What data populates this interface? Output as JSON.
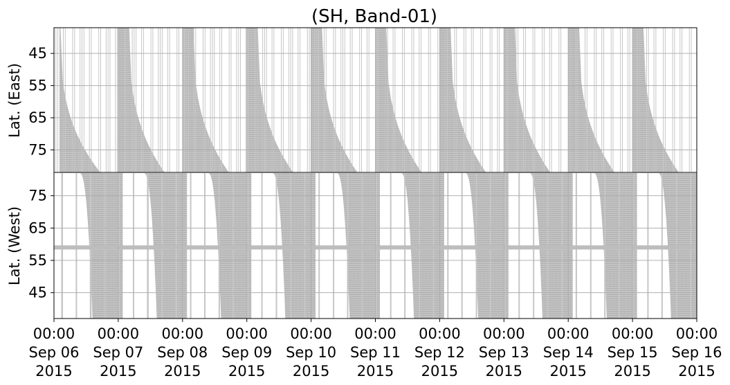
{
  "chart_data": {
    "type": "heatmap",
    "title": "(SH, Band-01)",
    "mark_color": "#b8b8b8",
    "grid": true,
    "x_ticks": [
      {
        "time": "00:00",
        "date": "Sep 06",
        "year": "2015"
      },
      {
        "time": "00:00",
        "date": "Sep 07",
        "year": "2015"
      },
      {
        "time": "00:00",
        "date": "Sep 08",
        "year": "2015"
      },
      {
        "time": "00:00",
        "date": "Sep 09",
        "year": "2015"
      },
      {
        "time": "00:00",
        "date": "Sep 10",
        "year": "2015"
      },
      {
        "time": "00:00",
        "date": "Sep 11",
        "year": "2015"
      },
      {
        "time": "00:00",
        "date": "Sep 12",
        "year": "2015"
      },
      {
        "time": "00:00",
        "date": "Sep 13",
        "year": "2015"
      },
      {
        "time": "00:00",
        "date": "Sep 14",
        "year": "2015"
      },
      {
        "time": "00:00",
        "date": "Sep 15",
        "year": "2015"
      },
      {
        "time": "00:00",
        "date": "Sep 16",
        "year": "2015"
      }
    ],
    "xlim": [
      "2015-09-06 00:00",
      "2015-09-16 00:00"
    ],
    "panels": [
      {
        "name": "east",
        "ylabel": "Lat. (East)",
        "yticks": [
          "45",
          "55",
          "65",
          "75"
        ],
        "ylim": [
          37,
          82
        ],
        "y_inverted": true,
        "daily_coverage": [
          {
            "x": "2015-09-06",
            "lat_full_until_day_fraction": 0.1,
            "lat_82_at_day_fraction": 0.72
          },
          {
            "x": "2015-09-07",
            "lat_full_until_day_fraction": 0.17,
            "lat_82_at_day_fraction": 0.72
          },
          {
            "x": "2015-09-08",
            "lat_full_until_day_fraction": 0.17,
            "lat_82_at_day_fraction": 0.72
          },
          {
            "x": "2015-09-09",
            "lat_full_until_day_fraction": 0.17,
            "lat_82_at_day_fraction": 0.72
          },
          {
            "x": "2015-09-10",
            "lat_full_until_day_fraction": 0.17,
            "lat_82_at_day_fraction": 0.72
          },
          {
            "x": "2015-09-11",
            "lat_full_until_day_fraction": 0.17,
            "lat_82_at_day_fraction": 0.72
          },
          {
            "x": "2015-09-12",
            "lat_full_until_day_fraction": 0.17,
            "lat_82_at_day_fraction": 0.72
          },
          {
            "x": "2015-09-13",
            "lat_full_until_day_fraction": 0.17,
            "lat_82_at_day_fraction": 0.72
          },
          {
            "x": "2015-09-14",
            "lat_full_until_day_fraction": 0.17,
            "lat_82_at_day_fraction": 0.72
          },
          {
            "x": "2015-09-15",
            "lat_full_until_day_fraction": 0.17,
            "lat_82_at_day_fraction": 0.72
          }
        ]
      },
      {
        "name": "west",
        "ylabel": "Lat. (West)",
        "yticks": [
          "75",
          "65",
          "55",
          "45"
        ],
        "ylim": [
          82,
          37
        ],
        "y_inverted": false,
        "horizontal_band_lat": 59,
        "daily_coverage": [
          {
            "x": "2015-09-06",
            "lat_82_at_day_fraction": 0.4,
            "full_from_day_fraction": 0.6,
            "full_until_day_fraction": 1.07
          },
          {
            "x": "2015-09-07",
            "lat_82_at_day_fraction": 0.4,
            "full_from_day_fraction": 0.6,
            "full_until_day_fraction": 1.07
          },
          {
            "x": "2015-09-08",
            "lat_82_at_day_fraction": 0.4,
            "full_from_day_fraction": 0.6,
            "full_until_day_fraction": 1.07
          },
          {
            "x": "2015-09-09",
            "lat_82_at_day_fraction": 0.4,
            "full_from_day_fraction": 0.6,
            "full_until_day_fraction": 1.07
          },
          {
            "x": "2015-09-10",
            "lat_82_at_day_fraction": 0.4,
            "full_from_day_fraction": 0.6,
            "full_until_day_fraction": 1.07
          },
          {
            "x": "2015-09-11",
            "lat_82_at_day_fraction": 0.4,
            "full_from_day_fraction": 0.6,
            "full_until_day_fraction": 1.07
          },
          {
            "x": "2015-09-12",
            "lat_82_at_day_fraction": 0.4,
            "full_from_day_fraction": 0.6,
            "full_until_day_fraction": 1.07
          },
          {
            "x": "2015-09-13",
            "lat_82_at_day_fraction": 0.4,
            "full_from_day_fraction": 0.6,
            "full_until_day_fraction": 1.07
          },
          {
            "x": "2015-09-14",
            "lat_82_at_day_fraction": 0.4,
            "full_from_day_fraction": 0.6,
            "full_until_day_fraction": 1.07
          },
          {
            "x": "2015-09-15",
            "lat_82_at_day_fraction": 0.4,
            "full_from_day_fraction": 0.6,
            "full_until_day_fraction": 1.0
          }
        ]
      }
    ]
  }
}
